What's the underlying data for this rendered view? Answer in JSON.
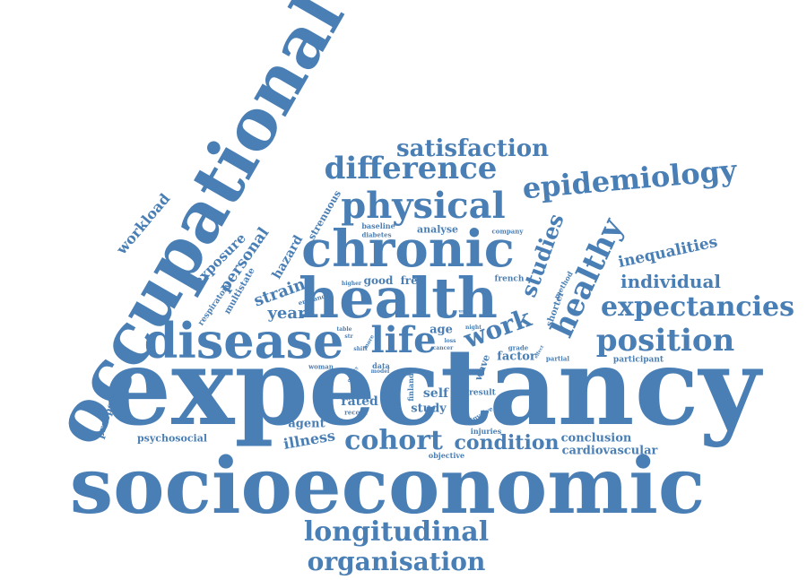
{
  "palette": {
    "word_color": "#4a7fb5",
    "background": "#ffffff"
  },
  "words": [
    {
      "text": "expectancy",
      "weight": 100
    },
    {
      "text": "socioeconomic",
      "weight": 72
    },
    {
      "text": "occupational",
      "weight": 66
    },
    {
      "text": "health",
      "weight": 48
    },
    {
      "text": "chronic",
      "weight": 44
    },
    {
      "text": "disease",
      "weight": 42
    },
    {
      "text": "life",
      "weight": 34
    },
    {
      "text": "physical",
      "weight": 32
    },
    {
      "text": "epidemiology",
      "weight": 28
    },
    {
      "text": "difference",
      "weight": 28
    },
    {
      "text": "satisfaction",
      "weight": 24
    },
    {
      "text": "healthy",
      "weight": 28
    },
    {
      "text": "position",
      "weight": 28
    },
    {
      "text": "expectancies",
      "weight": 26
    },
    {
      "text": "longitudinal",
      "weight": 26
    },
    {
      "text": "organisation",
      "weight": 24
    },
    {
      "text": "cohort",
      "weight": 26
    },
    {
      "text": "work",
      "weight": 24
    },
    {
      "text": "studies",
      "weight": 22
    },
    {
      "text": "condition",
      "weight": 20
    },
    {
      "text": "individual",
      "weight": 18
    },
    {
      "text": "inequalities",
      "weight": 16
    },
    {
      "text": "personal",
      "weight": 16
    },
    {
      "text": "strain",
      "weight": 16
    },
    {
      "text": "year",
      "weight": 16
    },
    {
      "text": "exposure",
      "weight": 14
    },
    {
      "text": "workload",
      "weight": 14
    },
    {
      "text": "hazard",
      "weight": 13
    },
    {
      "text": "illness",
      "weight": 13
    },
    {
      "text": "self",
      "weight": 12
    },
    {
      "text": "rated",
      "weight": 12
    },
    {
      "text": "study",
      "weight": 11
    },
    {
      "text": "agent",
      "weight": 11
    },
    {
      "text": "conclusion",
      "weight": 11
    },
    {
      "text": "cardiovascular",
      "weight": 11
    },
    {
      "text": "factor",
      "weight": 11
    },
    {
      "text": "age",
      "weight": 11
    },
    {
      "text": "good",
      "weight": 11
    },
    {
      "text": "free",
      "weight": 11
    },
    {
      "text": "analyse",
      "weight": 10
    },
    {
      "text": "prospective",
      "weight": 10
    },
    {
      "text": "psychosocial",
      "weight": 10
    },
    {
      "text": "strenuous",
      "weight": 10
    },
    {
      "text": "multistate",
      "weight": 9
    },
    {
      "text": "respiratory",
      "weight": 8
    },
    {
      "text": "wave",
      "weight": 10
    },
    {
      "text": "shorter",
      "weight": 9
    },
    {
      "text": "participant",
      "weight": 8
    },
    {
      "text": "result",
      "weight": 8
    },
    {
      "text": "injuries",
      "weight": 7
    },
    {
      "text": "objective",
      "weight": 7
    },
    {
      "text": "french",
      "weight": 8
    },
    {
      "text": "baseline",
      "weight": 7
    },
    {
      "text": "diabetes",
      "weight": 6
    },
    {
      "text": "company",
      "weight": 6
    },
    {
      "text": "method",
      "weight": 7
    },
    {
      "text": "grade",
      "weight": 6
    },
    {
      "text": "partial",
      "weight": 6
    },
    {
      "text": "night",
      "weight": 5
    },
    {
      "text": "loss",
      "weight": 5
    },
    {
      "text": "cancer",
      "weight": 5
    },
    {
      "text": "data",
      "weight": 7
    },
    {
      "text": "model",
      "weight": 5
    },
    {
      "text": "woman",
      "weight": 6
    },
    {
      "text": "finland",
      "weight": 7
    },
    {
      "text": "involve",
      "weight": 6
    },
    {
      "text": "record",
      "weight": 6
    },
    {
      "text": "england",
      "weight": 6
    },
    {
      "text": "higher",
      "weight": 5
    },
    {
      "text": "table",
      "weight": 5
    },
    {
      "text": "shift",
      "weight": 5
    },
    {
      "text": "str",
      "weight": 5
    },
    {
      "text": "more",
      "weight": 5
    },
    {
      "text": "quality",
      "weight": 4
    },
    {
      "text": "used",
      "weight": 4
    },
    {
      "text": "effect",
      "weight": 4
    }
  ]
}
